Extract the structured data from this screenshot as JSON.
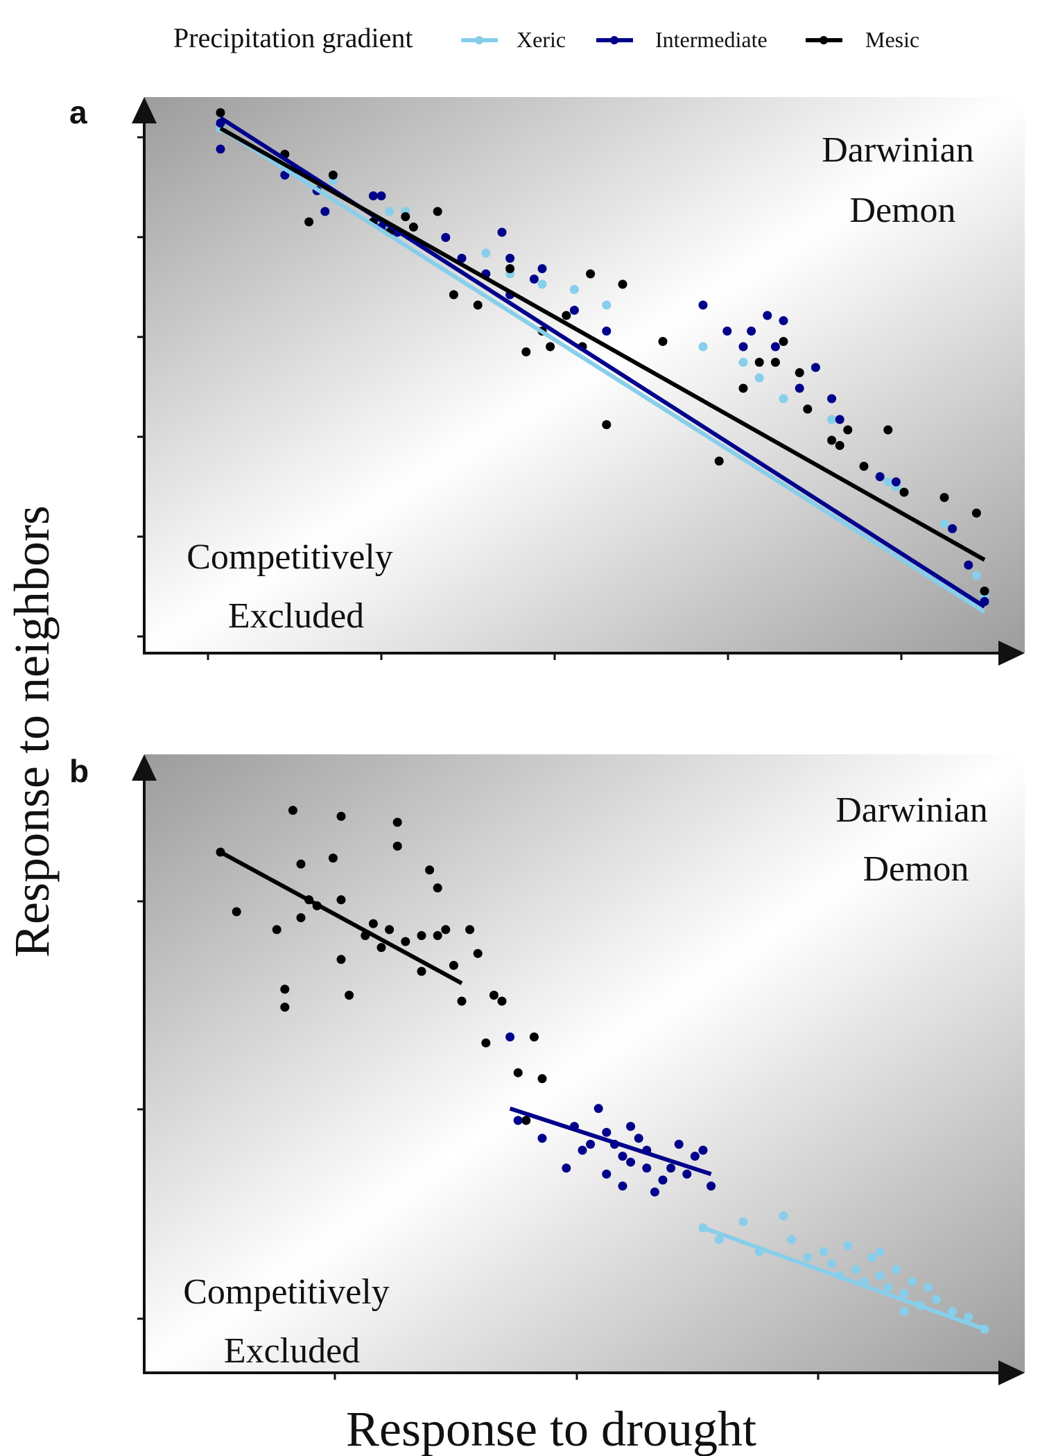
{
  "legend": {
    "title": "Precipitation gradient",
    "items": [
      {
        "label": "Xeric",
        "color": "#87ceeb"
      },
      {
        "label": "Intermediate",
        "color": "#00008b"
      },
      {
        "label": "Mesic",
        "color": "#000000"
      }
    ],
    "placement": "top"
  },
  "axes": {
    "xlabel": "Response to drought",
    "ylabel": "Response to neighbors"
  },
  "chart_data": [
    {
      "type": "scatter",
      "panel": "a",
      "quadrant_labels": {
        "top_right": [
          "Darwinian",
          "Demon"
        ],
        "bottom_left": [
          "Competitively",
          "Excluded"
        ]
      },
      "xlim": [
        0,
        10
      ],
      "ylim": [
        0,
        10
      ],
      "background": "diagonal gradient, gray corners to white diagonal",
      "grid": false,
      "series": [
        {
          "name": "Xeric",
          "color": "#87ceeb",
          "fit": {
            "x": [
              0.5,
              10
            ],
            "y": [
              9.8,
              0.5
            ]
          },
          "points": [
            [
              0.5,
              9.8
            ],
            [
              1.35,
              9.1
            ],
            [
              1.45,
              9.0
            ],
            [
              1.9,
              8.8
            ],
            [
              2.6,
              8.2
            ],
            [
              2.8,
              8.2
            ],
            [
              3.8,
              7.4
            ],
            [
              4.1,
              7.0
            ],
            [
              4.5,
              6.8
            ],
            [
              4.9,
              6.7
            ],
            [
              5.3,
              6.4
            ],
            [
              6.5,
              5.6
            ],
            [
              7.0,
              5.3
            ],
            [
              7.2,
              5.0
            ],
            [
              7.5,
              4.6
            ],
            [
              8.1,
              4.2
            ],
            [
              8.8,
              3.0
            ],
            [
              8.9,
              2.9
            ],
            [
              9.5,
              2.2
            ],
            [
              9.9,
              1.2
            ],
            [
              10.0,
              0.8
            ]
          ]
        },
        {
          "name": "Intermediate",
          "color": "#00008b",
          "fit": {
            "x": [
              0.5,
              10
            ],
            "y": [
              10.0,
              0.6
            ]
          },
          "points": [
            [
              0.5,
              9.4
            ],
            [
              0.5,
              9.9
            ],
            [
              1.3,
              8.9
            ],
            [
              1.4,
              9.0
            ],
            [
              1.7,
              8.6
            ],
            [
              1.8,
              8.2
            ],
            [
              2.4,
              8.5
            ],
            [
              2.5,
              8.5
            ],
            [
              2.5,
              7.9
            ],
            [
              2.7,
              7.8
            ],
            [
              3.3,
              7.7
            ],
            [
              3.5,
              7.3
            ],
            [
              3.8,
              7.0
            ],
            [
              4.0,
              7.8
            ],
            [
              4.1,
              7.3
            ],
            [
              4.1,
              6.6
            ],
            [
              4.4,
              6.9
            ],
            [
              4.5,
              7.1
            ],
            [
              4.9,
              6.3
            ],
            [
              5.3,
              5.9
            ],
            [
              6.5,
              6.4
            ],
            [
              6.8,
              5.9
            ],
            [
              7.0,
              5.6
            ],
            [
              7.1,
              5.9
            ],
            [
              7.3,
              6.2
            ],
            [
              7.4,
              5.6
            ],
            [
              7.5,
              6.1
            ],
            [
              7.7,
              4.8
            ],
            [
              7.9,
              5.2
            ],
            [
              8.1,
              4.6
            ],
            [
              8.2,
              4.2
            ],
            [
              8.7,
              3.1
            ],
            [
              8.9,
              3.0
            ],
            [
              9.6,
              2.1
            ],
            [
              9.8,
              1.4
            ],
            [
              10.0,
              0.7
            ]
          ]
        },
        {
          "name": "Mesic",
          "color": "#000000",
          "fit": {
            "x": [
              0.5,
              10
            ],
            "y": [
              9.8,
              1.5
            ]
          },
          "points": [
            [
              0.5,
              10.1
            ],
            [
              1.3,
              9.3
            ],
            [
              1.6,
              8.0
            ],
            [
              1.9,
              8.9
            ],
            [
              2.4,
              8.0
            ],
            [
              2.6,
              7.8
            ],
            [
              2.8,
              8.1
            ],
            [
              2.9,
              7.9
            ],
            [
              3.2,
              8.2
            ],
            [
              3.4,
              6.6
            ],
            [
              3.7,
              6.4
            ],
            [
              4.1,
              7.1
            ],
            [
              4.3,
              5.5
            ],
            [
              4.5,
              5.9
            ],
            [
              4.6,
              5.6
            ],
            [
              4.8,
              6.2
            ],
            [
              5.0,
              5.6
            ],
            [
              5.1,
              7.0
            ],
            [
              5.3,
              4.1
            ],
            [
              5.5,
              6.8
            ],
            [
              6.0,
              5.7
            ],
            [
              6.7,
              3.4
            ],
            [
              7.0,
              4.8
            ],
            [
              7.2,
              5.3
            ],
            [
              7.4,
              5.3
            ],
            [
              7.5,
              5.7
            ],
            [
              7.7,
              5.1
            ],
            [
              7.8,
              4.4
            ],
            [
              8.1,
              3.8
            ],
            [
              8.2,
              3.7
            ],
            [
              8.3,
              4.0
            ],
            [
              8.5,
              3.3
            ],
            [
              8.8,
              4.0
            ],
            [
              9.0,
              2.8
            ],
            [
              9.5,
              2.7
            ],
            [
              9.9,
              2.4
            ],
            [
              10.0,
              0.9
            ]
          ]
        }
      ]
    },
    {
      "type": "scatter",
      "panel": "b",
      "quadrant_labels": {
        "top_right": [
          "Darwinian",
          "Demon"
        ],
        "bottom_left": [
          "Competitively",
          "Excluded"
        ]
      },
      "xlim": [
        0,
        10
      ],
      "ylim": [
        0,
        10
      ],
      "background": "diagonal gradient, gray corners to white diagonal",
      "grid": false,
      "series": [
        {
          "name": "Mesic",
          "color": "#000000",
          "fit": {
            "x": [
              0.5,
              3.5
            ],
            "y": [
              8.5,
              6.3
            ]
          },
          "points": [
            [
              0.5,
              8.5
            ],
            [
              0.7,
              7.5
            ],
            [
              1.2,
              7.2
            ],
            [
              1.3,
              6.2
            ],
            [
              1.3,
              5.9
            ],
            [
              1.4,
              9.2
            ],
            [
              1.5,
              8.3
            ],
            [
              1.5,
              7.4
            ],
            [
              1.6,
              7.7
            ],
            [
              1.7,
              7.6
            ],
            [
              1.9,
              8.4
            ],
            [
              2.0,
              7.7
            ],
            [
              2.0,
              6.7
            ],
            [
              2.0,
              9.1
            ],
            [
              2.1,
              6.1
            ],
            [
              2.3,
              7.1
            ],
            [
              2.4,
              7.3
            ],
            [
              2.5,
              6.9
            ],
            [
              2.6,
              7.2
            ],
            [
              2.7,
              9.0
            ],
            [
              2.7,
              8.6
            ],
            [
              2.8,
              7.0
            ],
            [
              3.0,
              7.1
            ],
            [
              3.0,
              6.5
            ],
            [
              3.1,
              8.2
            ],
            [
              3.2,
              7.9
            ],
            [
              3.2,
              7.1
            ],
            [
              3.3,
              7.2
            ],
            [
              3.4,
              6.6
            ],
            [
              3.5,
              6.0
            ],
            [
              3.6,
              7.2
            ],
            [
              3.7,
              6.8
            ],
            [
              3.8,
              5.3
            ],
            [
              3.9,
              6.1
            ],
            [
              4.0,
              6.0
            ],
            [
              4.2,
              4.8
            ],
            [
              4.3,
              4.0
            ],
            [
              4.4,
              5.4
            ],
            [
              4.5,
              4.7
            ]
          ]
        },
        {
          "name": "Intermediate",
          "color": "#00008b",
          "fit": {
            "x": [
              4.1,
              6.6
            ],
            "y": [
              4.2,
              3.1
            ]
          },
          "points": [
            [
              4.1,
              5.4
            ],
            [
              4.2,
              4.0
            ],
            [
              4.5,
              3.7
            ],
            [
              4.8,
              3.2
            ],
            [
              4.9,
              3.9
            ],
            [
              5.1,
              3.6
            ],
            [
              5.2,
              4.2
            ],
            [
              5.3,
              3.8
            ],
            [
              5.3,
              3.1
            ],
            [
              5.4,
              3.6
            ],
            [
              5.5,
              2.9
            ],
            [
              5.5,
              3.4
            ],
            [
              5.6,
              3.3
            ],
            [
              5.7,
              3.7
            ],
            [
              5.8,
              3.2
            ],
            [
              5.9,
              2.8
            ],
            [
              6.0,
              3.0
            ],
            [
              6.1,
              3.2
            ],
            [
              6.2,
              3.6
            ],
            [
              6.3,
              3.1
            ],
            [
              6.4,
              3.4
            ],
            [
              6.5,
              3.5
            ],
            [
              6.6,
              2.9
            ],
            [
              5.0,
              3.5
            ],
            [
              5.6,
              3.9
            ],
            [
              5.8,
              3.5
            ]
          ]
        },
        {
          "name": "Xeric",
          "color": "#87ceeb",
          "fit": {
            "x": [
              6.5,
              10
            ],
            "y": [
              2.2,
              0.5
            ]
          },
          "points": [
            [
              6.5,
              2.2
            ],
            [
              6.7,
              2.0
            ],
            [
              7.0,
              2.3
            ],
            [
              7.2,
              1.8
            ],
            [
              7.5,
              2.4
            ],
            [
              7.6,
              2.0
            ],
            [
              7.8,
              1.7
            ],
            [
              8.0,
              1.8
            ],
            [
              8.1,
              1.6
            ],
            [
              8.3,
              1.9
            ],
            [
              8.4,
              1.5
            ],
            [
              8.5,
              1.3
            ],
            [
              8.6,
              1.7
            ],
            [
              8.7,
              1.4
            ],
            [
              8.8,
              1.2
            ],
            [
              8.9,
              1.5
            ],
            [
              9.0,
              1.1
            ],
            [
              9.1,
              1.3
            ],
            [
              9.2,
              0.9
            ],
            [
              9.4,
              1.0
            ],
            [
              9.6,
              0.8
            ],
            [
              9.8,
              0.7
            ],
            [
              10.0,
              0.5
            ],
            [
              8.2,
              1.4
            ],
            [
              8.7,
              1.8
            ],
            [
              9.0,
              0.8
            ],
            [
              9.3,
              1.2
            ]
          ]
        }
      ]
    }
  ],
  "panels": {
    "a": {
      "label": "a"
    },
    "b": {
      "label": "b"
    }
  }
}
